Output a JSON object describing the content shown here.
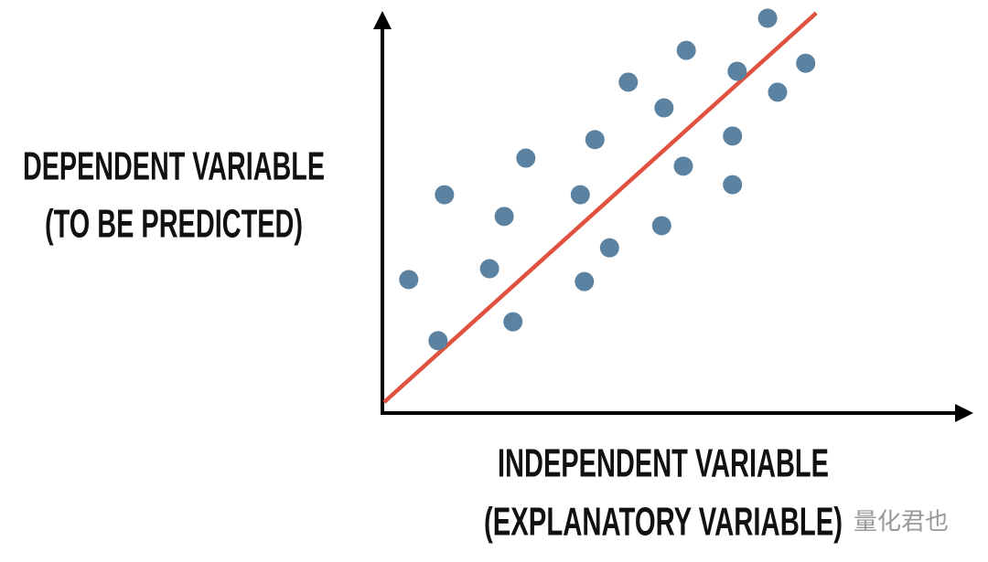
{
  "chart_data": {
    "type": "scatter",
    "y_label_lines": [
      "DEPENDENT VARIABLE",
      "(TO BE PREDICTED)"
    ],
    "x_label_lines": [
      "INDEPENDENT VARIABLE",
      "(EXPLANATORY VARIABLE)"
    ],
    "xlim": [
      0,
      100
    ],
    "ylim": [
      0,
      100
    ],
    "series": [
      {
        "color": "#5b82a0",
        "x": [
          4.5,
          9.5,
          10.6,
          18.3,
          20.8,
          22.3,
          24.5,
          33.8,
          34.5,
          36.3,
          38.8,
          42.0,
          47.7,
          48.1,
          51.4,
          51.9,
          59.8,
          59.8,
          60.6,
          65.8,
          67.5,
          72.3
        ],
        "values": [
          33.2,
          18.0,
          54.3,
          35.9,
          48.9,
          22.7,
          63.4,
          54.3,
          32.7,
          68.0,
          41.1,
          82.3,
          46.6,
          75.9,
          61.4,
          90.2,
          68.9,
          56.8,
          85.0,
          98.2,
          79.8,
          87.0
        ]
      }
    ],
    "trend_line": {
      "color": "#e0513f",
      "x": [
        0.3,
        74.1
      ],
      "values": [
        2.7,
        99.5
      ]
    },
    "watermark": "量化君也"
  }
}
